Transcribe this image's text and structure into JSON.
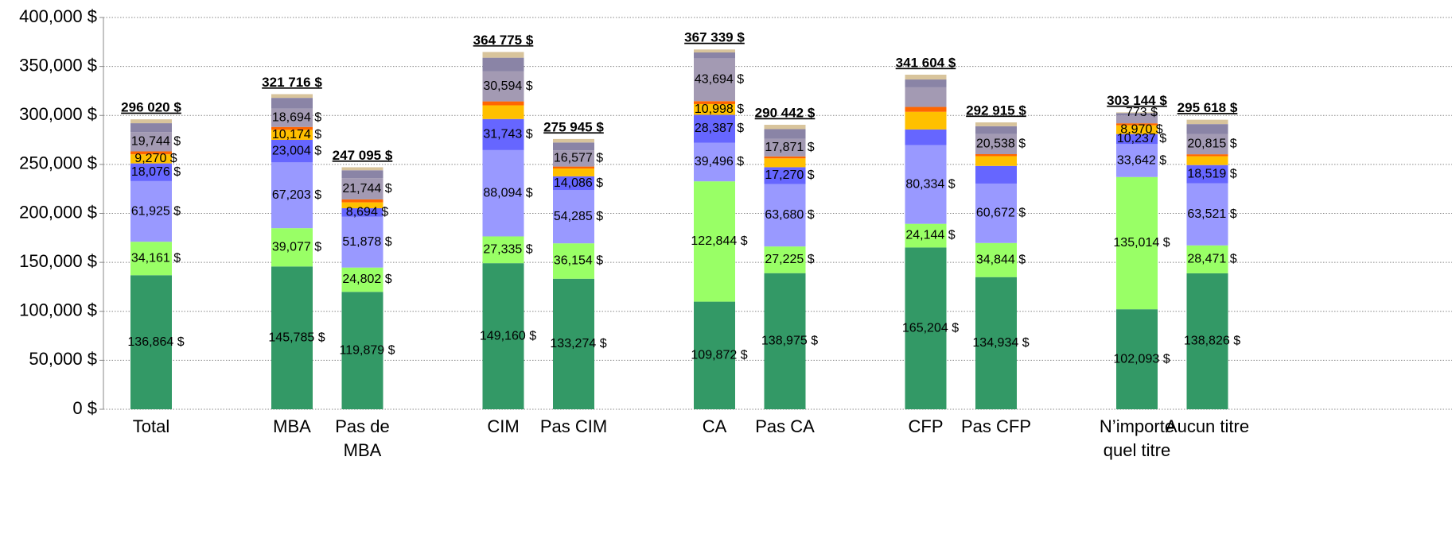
{
  "chart_data": {
    "type": "stacked_bar",
    "categories": [
      "Total",
      null,
      "MBA",
      "Pas de MBA",
      null,
      "CIM",
      "Pas CIM",
      null,
      "CA",
      "Pas CA",
      null,
      "CFP",
      "Pas CFP",
      null,
      "N’importe quel titre",
      "Aucun titre"
    ],
    "series": [
      {
        "color": "#339966",
        "values": [
          136864,
          null,
          145785,
          119879,
          null,
          149160,
          133274,
          null,
          109872,
          138975,
          null,
          165204,
          134934,
          null,
          102093,
          138826
        ],
        "value_labels": [
          "136,864 $",
          null,
          "145,785 $",
          "119,879 $",
          null,
          "149,160 $",
          "133,274 $",
          null,
          "109,872 $",
          "138,975 $",
          null,
          "165,204 $",
          "134,934 $",
          null,
          "102,093 $",
          "138,826 $"
        ]
      },
      {
        "color": "#99ff66",
        "values": [
          34161,
          null,
          39077,
          24802,
          null,
          27335,
          36154,
          null,
          122844,
          27225,
          null,
          24144,
          34844,
          null,
          135014,
          28471
        ],
        "value_labels": [
          "34,161 $",
          null,
          "39,077 $",
          "24,802 $",
          null,
          "27,335 $",
          "36,154 $",
          null,
          "122,844 $",
          "27,225 $",
          null,
          "24,144 $",
          "34,844 $",
          null,
          "135,014 $",
          "28,471 $"
        ]
      },
      {
        "color": "#9999ff",
        "values": [
          61925,
          null,
          67203,
          51878,
          null,
          88094,
          54285,
          null,
          39496,
          63680,
          null,
          80334,
          60672,
          null,
          33642,
          63521
        ],
        "value_labels": [
          "61,925 $",
          null,
          "67,203 $",
          "51,878 $",
          null,
          "88,094 $",
          "54,285 $",
          null,
          "39,496 $",
          "63,680 $",
          null,
          "80,334 $",
          "60,672 $",
          null,
          "33,642 $",
          "63,521 $"
        ]
      },
      {
        "color": "#6666ff",
        "values": [
          18076,
          null,
          23004,
          8694,
          null,
          31743,
          14086,
          null,
          28387,
          17270,
          null,
          16000,
          18000,
          null,
          10237,
          18519
        ],
        "value_labels": [
          "18,076 $",
          null,
          "23,004 $",
          "8,694 $",
          null,
          "31,743 $",
          "14,086 $",
          null,
          "28,387 $",
          "17,270 $",
          null,
          null,
          null,
          null,
          "10,237 $",
          "18,519 $"
        ]
      },
      {
        "color": "#ffc000",
        "values": [
          9270,
          null,
          10174,
          6000,
          null,
          14000,
          8000,
          null,
          10998,
          9000,
          null,
          18000,
          10000,
          null,
          8970,
          9000
        ],
        "value_labels": [
          "9,270 $",
          null,
          "10,174 $",
          null,
          null,
          null,
          null,
          null,
          "10,998 $",
          null,
          null,
          null,
          null,
          null,
          "8,970 $",
          null
        ]
      },
      {
        "color": "#ff6600",
        "values": [
          3000,
          null,
          3000,
          3000,
          null,
          4000,
          2000,
          null,
          3000,
          2000,
          null,
          5000,
          2000,
          null,
          2000,
          2000
        ]
      },
      {
        "color": "#a39ab3",
        "values": [
          19744,
          null,
          18694,
          21744,
          null,
          30594,
          16577,
          null,
          43694,
          17871,
          null,
          20000,
          20538,
          null,
          8000,
          20815
        ],
        "value_labels": [
          "19,744 $",
          null,
          "18,694 $",
          "21,744 $",
          null,
          "30,594 $",
          "16,577 $",
          null,
          "43,694 $",
          "17,871 $",
          null,
          null,
          "20,538 $",
          null,
          null,
          "20,815 $"
        ]
      },
      {
        "color": "#8a84a6",
        "values": [
          9000,
          null,
          11000,
          8000,
          null,
          14000,
          8000,
          null,
          6000,
          10000,
          null,
          8000,
          8000,
          null,
          2415,
          10000
        ]
      },
      {
        "color": "#d8c49c",
        "values": [
          3980,
          null,
          3779,
          3098,
          null,
          5849,
          3569,
          null,
          3048,
          4421,
          null,
          4922,
          3927,
          null,
          773,
          4466
        ],
        "value_labels": [
          null,
          null,
          null,
          null,
          null,
          null,
          null,
          null,
          null,
          null,
          null,
          null,
          null,
          null,
          "773 $",
          null
        ]
      }
    ],
    "totals": [
      296020,
      null,
      321716,
      247095,
      null,
      364775,
      275945,
      null,
      367339,
      290442,
      null,
      341604,
      292915,
      null,
      303144,
      295618
    ],
    "total_labels": [
      "296 020 $",
      null,
      "321 716 $",
      "247 095 $",
      null,
      "364 775 $",
      "275 945 $",
      null,
      "367 339 $",
      "290 442 $",
      null,
      "341 604 $",
      "292 915 $",
      null,
      "303 144 $",
      "295 618 $"
    ],
    "ylim": [
      0,
      400000
    ],
    "yticks": [
      {
        "value": 0,
        "label": "0 $"
      },
      {
        "value": 50000,
        "label": "50,000 $"
      },
      {
        "value": 100000,
        "label": "100,000 $"
      },
      {
        "value": 150000,
        "label": "150,000 $"
      },
      {
        "value": 200000,
        "label": "200,000 $"
      },
      {
        "value": 250000,
        "label": "250,000 $"
      },
      {
        "value": 300000,
        "label": "300,000 $"
      },
      {
        "value": 350000,
        "label": "350,000 $"
      },
      {
        "value": 400000,
        "label": "400,000 $"
      }
    ],
    "grid": true
  }
}
